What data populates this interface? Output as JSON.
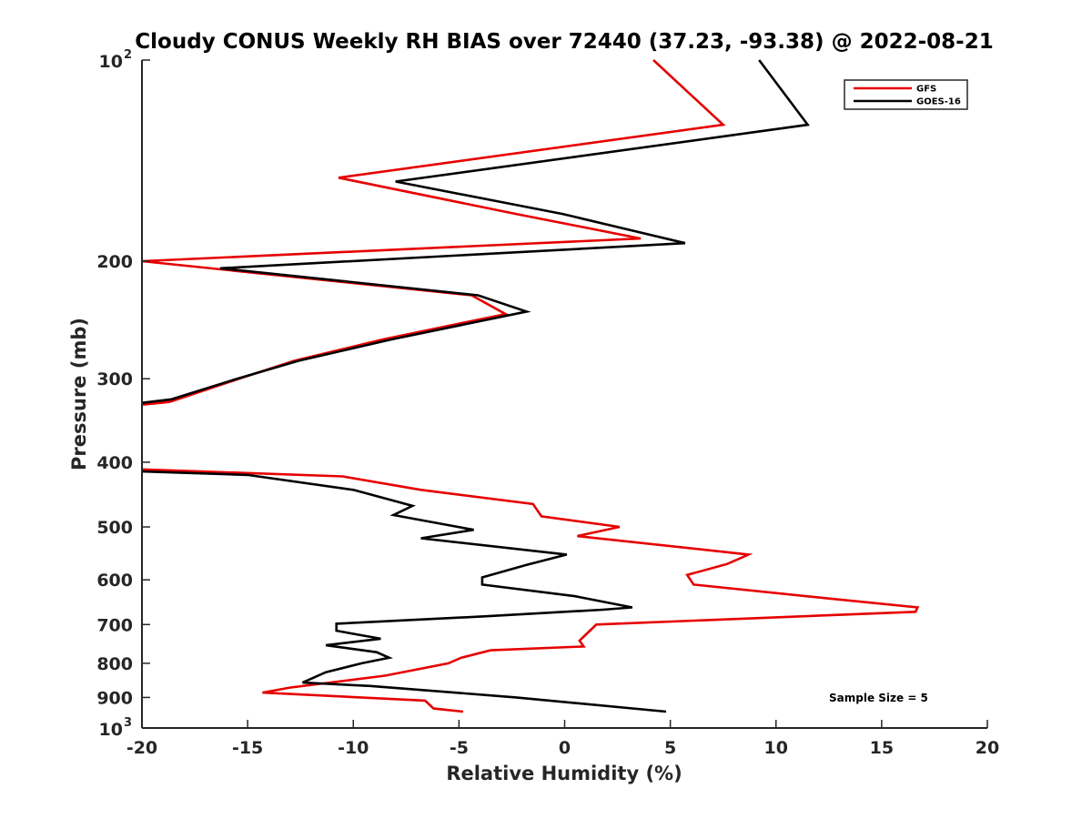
{
  "chart_data": {
    "type": "line",
    "title": "Cloudy CONUS Weekly RH BIAS over 72440 (37.23, -93.38) @ 2022-08-21",
    "xlabel": "Relative Humidity (%)",
    "ylabel": "Pressure (mb)",
    "xlim": [
      -20,
      20
    ],
    "ylim": [
      100,
      1000
    ],
    "y_scale": "log",
    "y_reversed": true,
    "grid": false,
    "legend_position": "top-right",
    "x_ticks": [
      "-20",
      "-15",
      "-10",
      "-5",
      "0",
      "5",
      "10",
      "15",
      "20"
    ],
    "y_ticks": [
      {
        "value": 100,
        "label": "10",
        "sup": "2"
      },
      {
        "value": 200,
        "label": "200"
      },
      {
        "value": 300,
        "label": "300"
      },
      {
        "value": 400,
        "label": "400"
      },
      {
        "value": 500,
        "label": "500"
      },
      {
        "value": 600,
        "label": "600"
      },
      {
        "value": 700,
        "label": "700"
      },
      {
        "value": 800,
        "label": "800"
      },
      {
        "value": 900,
        "label": "900"
      },
      {
        "value": 1000,
        "label": "10",
        "sup": "3"
      }
    ],
    "series": [
      {
        "name": "GFS",
        "color": "#e60000",
        "segments": [
          [
            [
              4.2,
              100
            ],
            [
              7.5,
              125
            ],
            [
              -10.7,
              150
            ],
            [
              -2.3,
              170
            ],
            [
              3.6,
              185
            ],
            [
              -20,
              200
            ],
            [
              -4.4,
              225
            ],
            [
              -2.8,
              240
            ],
            [
              -8.6,
              262
            ],
            [
              -12.8,
              282
            ],
            [
              -15.4,
              300
            ],
            [
              -18.7,
              325
            ],
            [
              -20,
              328
            ]
          ],
          [
            [
              -20,
              410
            ],
            [
              -10.5,
              420
            ],
            [
              -6.8,
              440
            ],
            [
              -1.5,
              462
            ],
            [
              -1.1,
              482
            ],
            [
              2.6,
              500
            ],
            [
              0.6,
              516
            ],
            [
              8.7,
              550
            ],
            [
              7.7,
              568
            ],
            [
              5.8,
              590
            ],
            [
              6.1,
              610
            ],
            [
              12.5,
              640
            ],
            [
              16.7,
              660
            ],
            [
              16.6,
              670
            ],
            [
              1.5,
              700
            ],
            [
              0.7,
              740
            ],
            [
              0.9,
              755
            ],
            [
              -3.5,
              765
            ],
            [
              -4.9,
              785
            ],
            [
              -5.5,
              800
            ],
            [
              -8.5,
              835
            ],
            [
              -13.0,
              870
            ],
            [
              -14.3,
              885
            ],
            [
              -6.6,
              910
            ],
            [
              -6.2,
              935
            ],
            [
              -4.8,
              945
            ]
          ]
        ]
      },
      {
        "name": "GOES-16",
        "color": "#000000",
        "segments": [
          [
            [
              9.2,
              100
            ],
            [
              11.5,
              125
            ],
            [
              -8.0,
              152
            ],
            [
              -0.1,
              170
            ],
            [
              5.7,
              188
            ],
            [
              -16.3,
              205
            ],
            [
              -4.1,
              225
            ],
            [
              -1.8,
              238
            ],
            [
              -8.2,
              262
            ],
            [
              -12.6,
              282
            ],
            [
              -15.5,
              300
            ],
            [
              -18.6,
              322
            ],
            [
              -20,
              326
            ]
          ],
          [
            [
              -20,
              413
            ],
            [
              -15.0,
              418
            ],
            [
              -10.0,
              440
            ],
            [
              -7.2,
              465
            ],
            [
              -8.1,
              480
            ],
            [
              -4.3,
              505
            ],
            [
              -6.8,
              520
            ],
            [
              0.1,
              550
            ],
            [
              -1.8,
              570
            ],
            [
              -3.9,
              595
            ],
            [
              -3.9,
              610
            ],
            [
              0.5,
              635
            ],
            [
              3.2,
              660
            ],
            [
              1.8,
              665
            ],
            [
              -3.6,
              680
            ],
            [
              -10.8,
              698
            ],
            [
              -10.8,
              715
            ],
            [
              -8.7,
              735
            ],
            [
              -11.3,
              752
            ],
            [
              -8.9,
              770
            ],
            [
              -8.3,
              785
            ],
            [
              -9.6,
              800
            ],
            [
              -11.3,
              825
            ],
            [
              -12.4,
              855
            ],
            [
              -9.2,
              865
            ],
            [
              -2.3,
              900
            ],
            [
              4.8,
              945
            ]
          ]
        ]
      }
    ],
    "annotations": [
      "Sample Size = 5"
    ]
  }
}
